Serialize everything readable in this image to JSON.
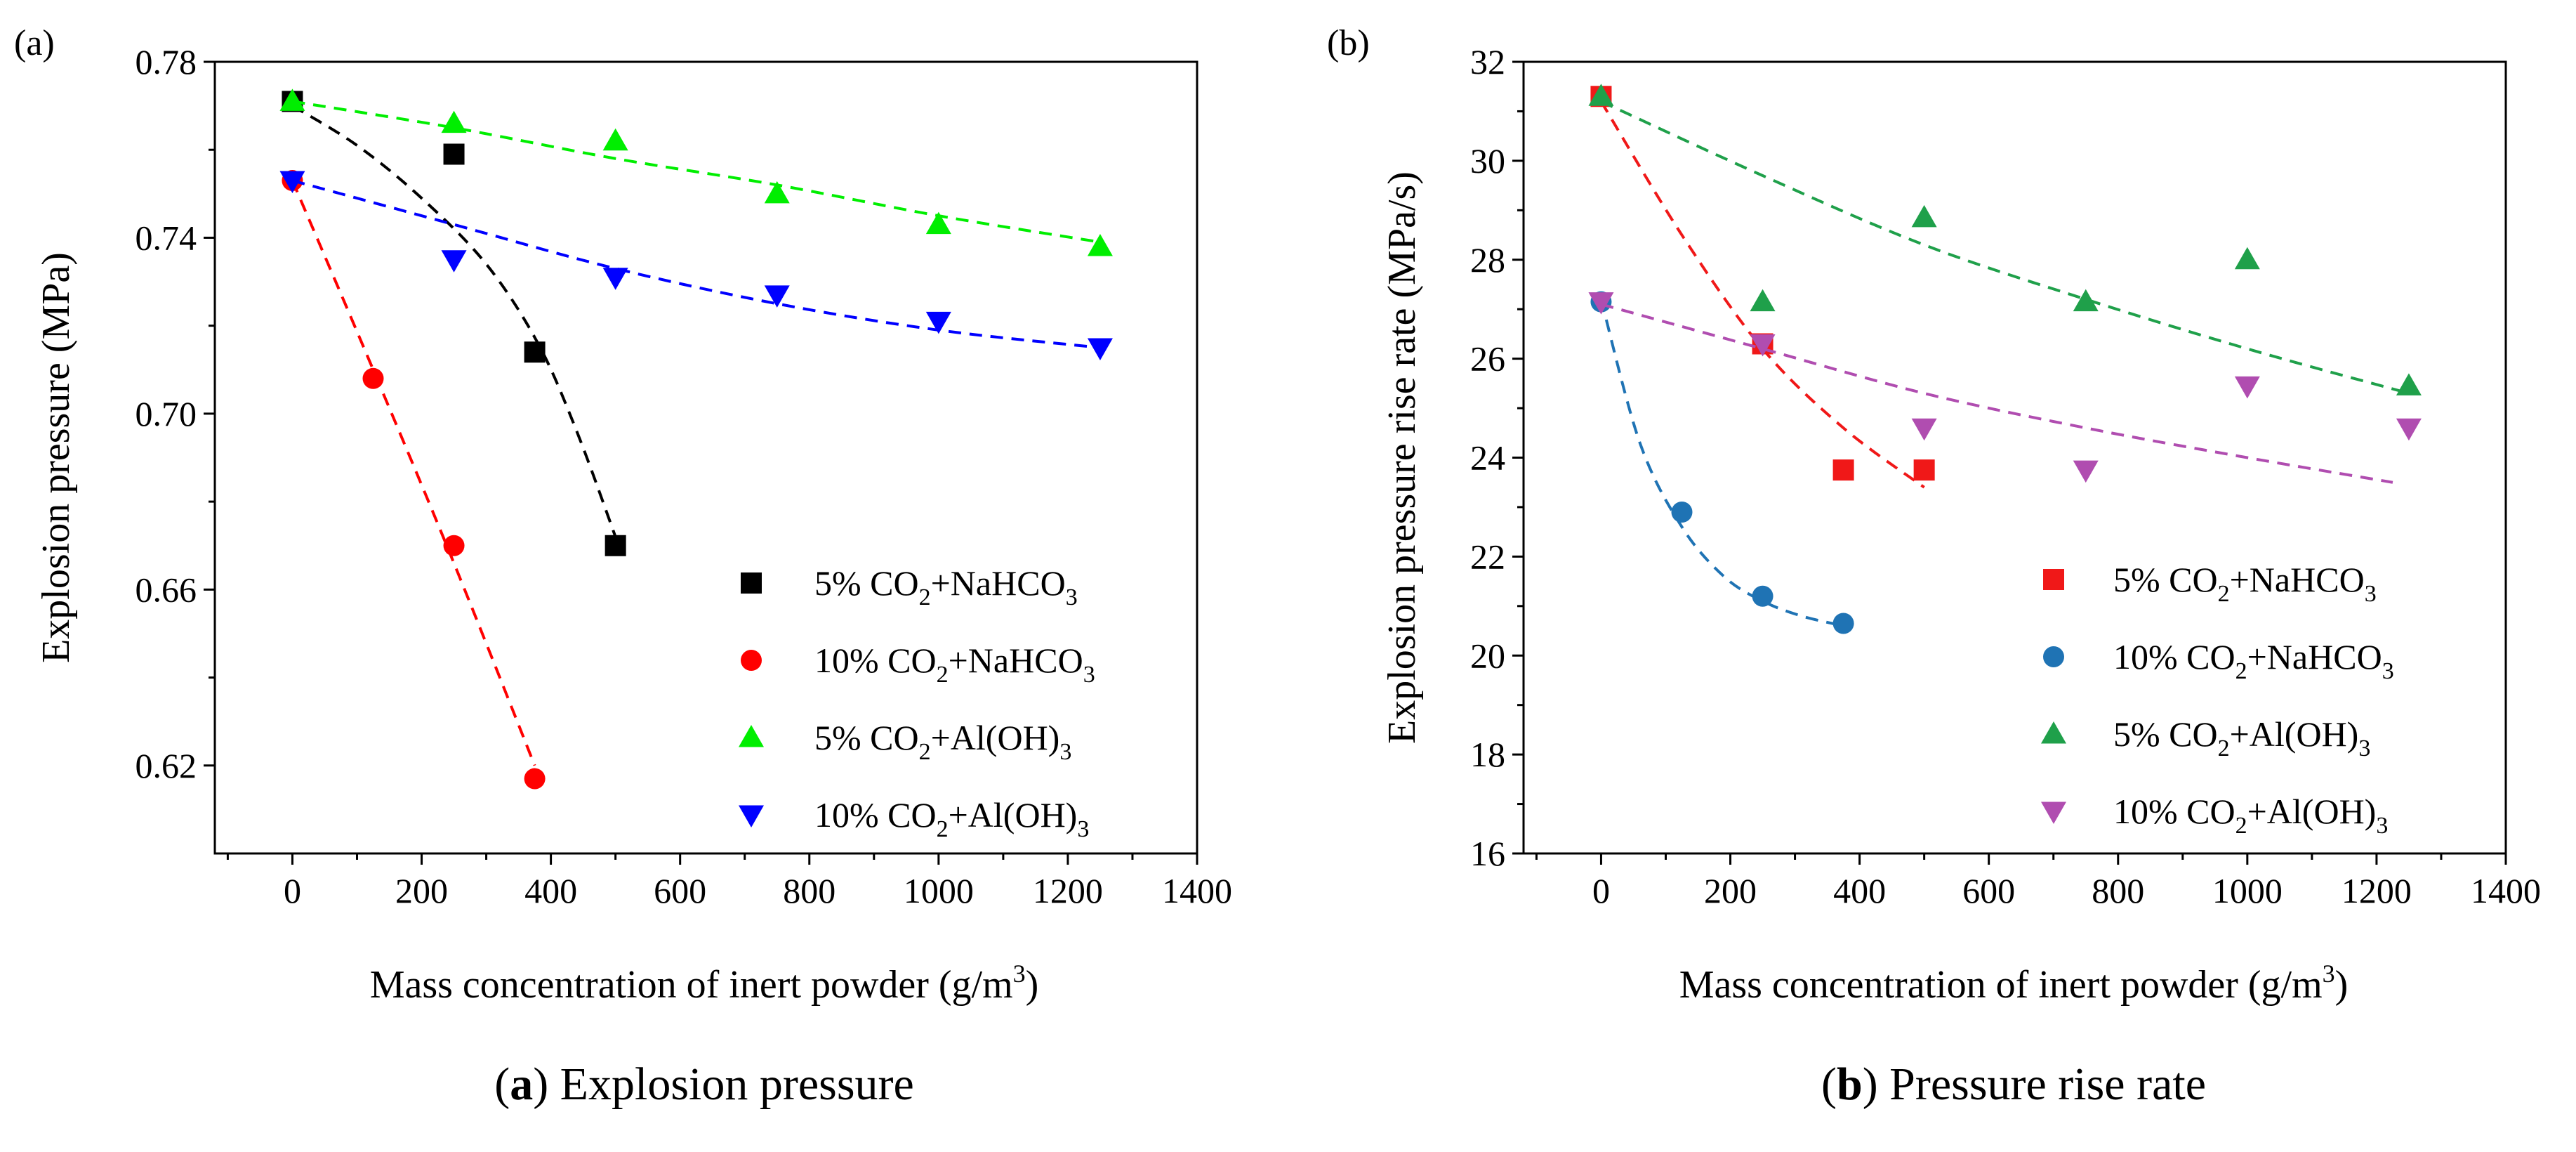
{
  "figure": {
    "panel_a_caption": {
      "letter": "a",
      "text": "Explosion pressure"
    },
    "panel_b_caption": {
      "letter": "b",
      "text": "Pressure rise rate"
    }
  },
  "chart_data": [
    {
      "type": "scatter",
      "panel_label": "(a)",
      "title": "",
      "xlabel": "Mass concentration of inert powder (g/m³)",
      "ylabel": "Explosion pressure (MPa)",
      "xlim": [
        -120,
        1400
      ],
      "ylim": [
        0.6,
        0.78
      ],
      "xticks": [
        0,
        200,
        400,
        600,
        800,
        1000,
        1200,
        1400
      ],
      "yticks": [
        0.62,
        0.66,
        0.7,
        0.74,
        0.78
      ],
      "ytick_decimals": 2,
      "legend_position": "center-right",
      "series": [
        {
          "name": "5% CO2+NaHCO3",
          "legend": {
            "prefix": "5% CO",
            "sub1": "2",
            "mid": "+NaHCO",
            "sub2": "3"
          },
          "marker": "square",
          "color": "#000000",
          "x": [
            0,
            250,
            375,
            500
          ],
          "y": [
            0.771,
            0.759,
            0.714,
            0.67
          ],
          "fit_x": [
            0,
            100,
            200,
            300,
            380,
            440,
            500
          ],
          "fit_y": [
            0.77,
            0.761,
            0.749,
            0.734,
            0.716,
            0.696,
            0.672
          ]
        },
        {
          "name": "10% CO2+NaHCO3",
          "legend": {
            "prefix": "10% CO",
            "sub1": "2",
            "mid": "+NaHCO",
            "sub2": "3"
          },
          "marker": "circle",
          "color": "#ff0000",
          "x": [
            0,
            125,
            250,
            375
          ],
          "y": [
            0.753,
            0.708,
            0.67,
            0.617
          ],
          "fit_x": [
            0,
            125,
            250,
            375
          ],
          "fit_y": [
            0.753,
            0.71,
            0.666,
            0.62
          ]
        },
        {
          "name": "5% CO2+Al(OH)3",
          "legend": {
            "prefix": "5% CO",
            "sub1": "2",
            "mid": "+Al(OH)",
            "sub2": "3"
          },
          "marker": "triangle-up",
          "color": "#00ee00",
          "x": [
            0,
            250,
            500,
            750,
            1000,
            1250
          ],
          "y": [
            0.771,
            0.766,
            0.762,
            0.75,
            0.743,
            0.738
          ],
          "fit_x": [
            0,
            250,
            500,
            750,
            1000,
            1250
          ],
          "fit_y": [
            0.771,
            0.765,
            0.758,
            0.752,
            0.745,
            0.739
          ]
        },
        {
          "name": "10% CO2+Al(OH)3",
          "legend": {
            "prefix": "10% CO",
            "sub1": "2",
            "mid": "+Al(OH)",
            "sub2": "3"
          },
          "marker": "triangle-down",
          "color": "#0000ff",
          "x": [
            0,
            250,
            500,
            750,
            1000,
            1250
          ],
          "y": [
            0.753,
            0.735,
            0.731,
            0.727,
            0.721,
            0.715
          ],
          "fit_x": [
            0,
            250,
            500,
            750,
            1000,
            1250
          ],
          "fit_y": [
            0.753,
            0.743,
            0.733,
            0.725,
            0.719,
            0.715
          ]
        }
      ]
    },
    {
      "type": "scatter",
      "panel_label": "(b)",
      "title": "",
      "xlabel": "Mass concentration of inert powder (g/m³)",
      "ylabel": "Explosion pressure rise rate (MPa/s)",
      "xlim": [
        -120,
        1400
      ],
      "ylim": [
        16,
        32
      ],
      "xticks": [
        0,
        200,
        400,
        600,
        800,
        1000,
        1200,
        1400
      ],
      "yticks": [
        16,
        18,
        20,
        22,
        24,
        26,
        28,
        30,
        32
      ],
      "ytick_decimals": 0,
      "legend_position": "center-right",
      "series": [
        {
          "name": "5% CO2+NaHCO3",
          "legend": {
            "prefix": "5% CO",
            "sub1": "2",
            "mid": "+NaHCO",
            "sub2": "3"
          },
          "marker": "square",
          "color": "#f01818",
          "x": [
            0,
            250,
            375,
            500
          ],
          "y": [
            31.3,
            26.3,
            23.75,
            23.75
          ],
          "fit_x": [
            0,
            125,
            250,
            375,
            500
          ],
          "fit_y": [
            31.2,
            28.5,
            26.2,
            24.6,
            23.4
          ]
        },
        {
          "name": "10% CO2+NaHCO3",
          "legend": {
            "prefix": "10% CO",
            "sub1": "2",
            "mid": "+NaHCO",
            "sub2": "3"
          },
          "marker": "circle",
          "color": "#1f73b4",
          "x": [
            0,
            125,
            250,
            375
          ],
          "y": [
            27.15,
            22.9,
            21.2,
            20.65
          ],
          "fit_x": [
            0,
            60,
            125,
            190,
            250,
            310,
            375
          ],
          "fit_y": [
            27.2,
            24.3,
            22.6,
            21.6,
            21.1,
            20.8,
            20.6
          ]
        },
        {
          "name": "5% CO2+Al(OH)3",
          "legend": {
            "prefix": "5% CO",
            "sub1": "2",
            "mid": "+Al(OH)",
            "sub2": "3"
          },
          "marker": "triangle-up",
          "color": "#1fa04a",
          "x": [
            0,
            250,
            500,
            750,
            1000,
            1250
          ],
          "y": [
            31.3,
            27.15,
            28.85,
            27.15,
            28.0,
            25.45
          ],
          "fit_x": [
            0,
            250,
            500,
            750,
            1000,
            1250
          ],
          "fit_y": [
            31.2,
            29.7,
            28.3,
            27.2,
            26.2,
            25.3
          ]
        },
        {
          "name": "10% CO2+Al(OH)3",
          "legend": {
            "prefix": "10% CO",
            "sub1": "2",
            "mid": "+Al(OH)",
            "sub2": "3"
          },
          "marker": "triangle-down",
          "color": "#b04db0",
          "x": [
            0,
            250,
            500,
            750,
            1000,
            1250
          ],
          "y": [
            27.15,
            26.3,
            24.6,
            23.75,
            25.45,
            24.6
          ],
          "fit_x": [
            0,
            250,
            500,
            750,
            1000,
            1225
          ],
          "fit_y": [
            27.1,
            26.2,
            25.3,
            24.6,
            24.0,
            23.5
          ]
        }
      ]
    }
  ]
}
